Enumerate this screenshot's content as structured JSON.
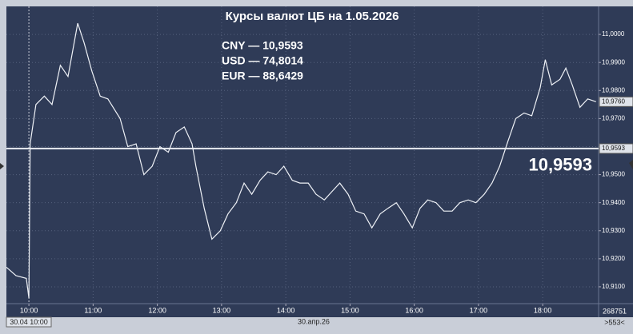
{
  "chart_data": {
    "type": "line",
    "title": "Курсы валют ЦБ на 1.05.2026",
    "annotations": [
      "CNY — 10,9593",
      "USD — 74,8014",
      "EUR — 88,6429"
    ],
    "reference_line": {
      "value": 10.9593,
      "label": "10,9593"
    },
    "last_price": {
      "value": 10.976,
      "label": "10,9760"
    },
    "cursor_label": "30.04 10:00",
    "date_label": "30.апр.26",
    "volume_label": "268751",
    "count_label": ">553<",
    "color": "#eef1f6",
    "grid": true,
    "x": [
      9.65,
      9.8,
      9.96,
      10.0,
      10.02,
      10.11,
      10.24,
      10.36,
      10.49,
      10.61,
      10.76,
      10.86,
      10.98,
      11.11,
      11.23,
      11.42,
      11.54,
      11.67,
      11.79,
      11.92,
      12.04,
      12.17,
      12.29,
      12.42,
      12.54,
      12.6,
      12.73,
      12.85,
      12.98,
      13.1,
      13.23,
      13.35,
      13.47,
      13.6,
      13.72,
      13.85,
      13.97,
      14.1,
      14.22,
      14.35,
      14.47,
      14.6,
      14.72,
      14.84,
      14.97,
      15.09,
      15.22,
      15.34,
      15.47,
      15.59,
      15.72,
      15.84,
      15.97,
      16.09,
      16.21,
      16.34,
      16.46,
      16.59,
      16.71,
      16.84,
      16.96,
      17.09,
      17.21,
      17.33,
      17.46,
      17.58,
      17.71,
      17.83,
      17.96,
      18.04,
      18.14,
      18.27,
      18.36,
      18.46,
      18.58,
      18.7,
      18.83
    ],
    "values": [
      10.917,
      10.914,
      10.913,
      10.906,
      10.961,
      10.975,
      10.978,
      10.975,
      10.989,
      10.985,
      11.004,
      10.997,
      10.987,
      10.978,
      10.977,
      10.97,
      10.96,
      10.961,
      10.95,
      10.953,
      10.96,
      10.958,
      10.965,
      10.967,
      10.961,
      10.953,
      10.938,
      10.927,
      10.93,
      10.936,
      10.94,
      10.947,
      10.943,
      10.948,
      10.951,
      10.95,
      10.953,
      10.948,
      10.947,
      10.947,
      10.943,
      10.941,
      10.944,
      10.947,
      10.943,
      10.937,
      10.936,
      10.931,
      10.936,
      10.938,
      10.94,
      10.936,
      10.931,
      10.938,
      10.941,
      10.94,
      10.937,
      10.937,
      10.94,
      10.941,
      10.94,
      10.943,
      10.947,
      10.953,
      10.962,
      10.97,
      10.972,
      10.971,
      10.981,
      10.991,
      10.982,
      10.984,
      10.988,
      10.982,
      10.974,
      10.977,
      10.976
    ],
    "xlim": [
      9.65,
      18.87
    ],
    "xticks": [
      {
        "value": 10,
        "label": "10:00"
      },
      {
        "value": 11,
        "label": "11:00"
      },
      {
        "value": 12,
        "label": "12:00"
      },
      {
        "value": 13,
        "label": "13:00"
      },
      {
        "value": 14,
        "label": "14:00"
      },
      {
        "value": 15,
        "label": "15:00"
      },
      {
        "value": 16,
        "label": "16:00"
      },
      {
        "value": 17,
        "label": "17:00"
      },
      {
        "value": 18,
        "label": "18:00"
      }
    ],
    "ylim": [
      10.904,
      11.01
    ],
    "yticks": [
      {
        "value": 10.91,
        "label": "10,9100"
      },
      {
        "value": 10.92,
        "label": "10,9200"
      },
      {
        "value": 10.93,
        "label": "10,9300"
      },
      {
        "value": 10.94,
        "label": "10,9400"
      },
      {
        "value": 10.95,
        "label": "10,9500"
      },
      {
        "value": 10.96,
        "label": "10,9600"
      },
      {
        "value": 10.97,
        "label": "10,9700"
      },
      {
        "value": 10.98,
        "label": "10,9800"
      },
      {
        "value": 10.99,
        "label": "10,9900"
      },
      {
        "value": 11.0,
        "label": "11,0000"
      }
    ]
  }
}
